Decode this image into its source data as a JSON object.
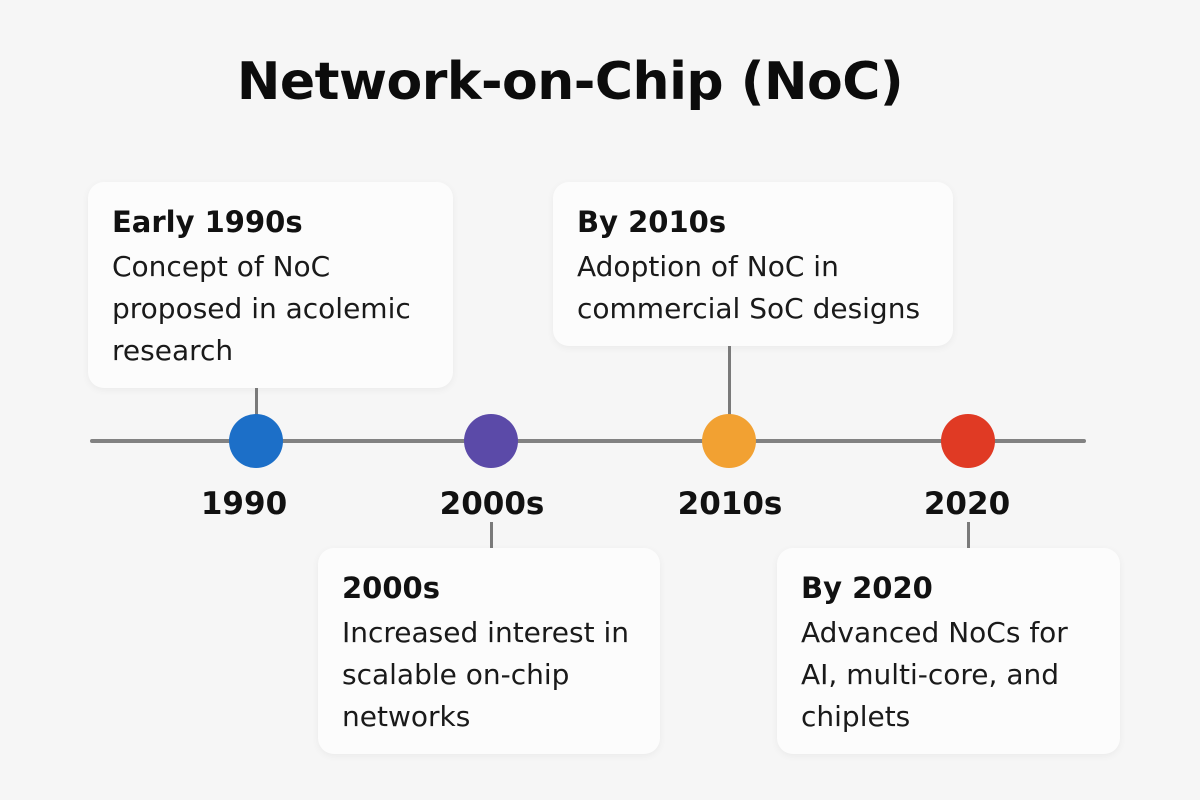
{
  "title": "Network-on-Chip (NoC)",
  "colors": {
    "1990": "#1c6fc8",
    "2000s": "#5b4aa8",
    "2010s": "#f2a132",
    "2020": "#e03a24"
  },
  "milestones": [
    {
      "year": "1990",
      "color": "#1c6fc8",
      "card_title": "Early 1990s",
      "card_text": "Concept of NoC proposed in acolemic research"
    },
    {
      "year": "2000s",
      "color": "#5b4aa8",
      "card_title": "2000s",
      "card_text": "Increased interest in scalable on-chip networks"
    },
    {
      "year": "2010s",
      "color": "#f2a132",
      "card_title": "By 2010s",
      "card_text": "Adoption of NoC in commercial SoC designs"
    },
    {
      "year": "2020",
      "color": "#e03a24",
      "card_title": "By 2020",
      "card_text": "Advanced NoCs for AI, multi-core, and chiplets"
    }
  ]
}
